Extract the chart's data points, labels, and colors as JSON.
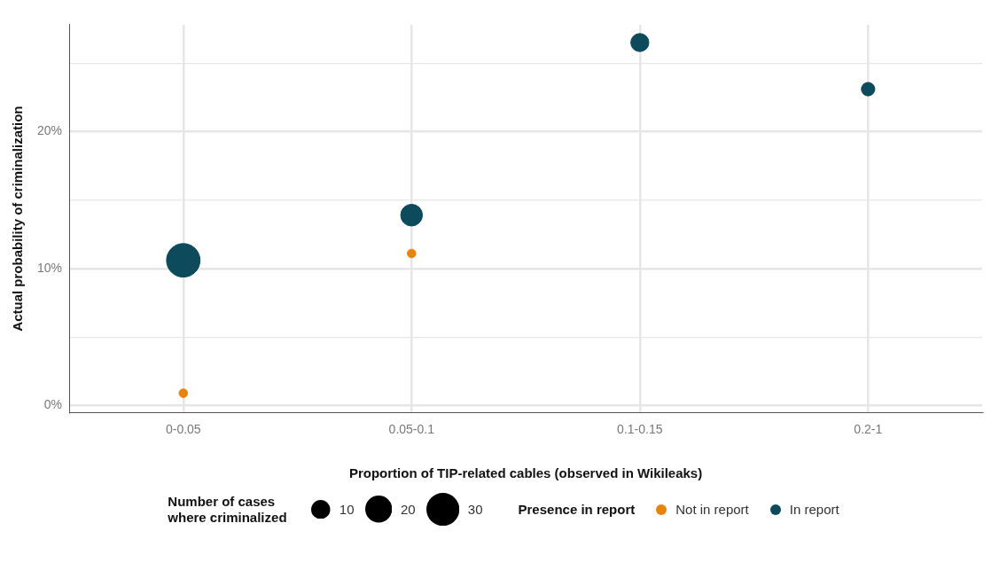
{
  "chart_data": {
    "type": "bubble",
    "xlabel": "Proportion of TIP-related cables (observed in Wikileaks)",
    "ylabel": "Actual probability of criminalization",
    "categories": [
      "0-0.05",
      "0.05-0.1",
      "0.1-0.15",
      "0.2-1"
    ],
    "series": [
      {
        "name": "Not in report",
        "color": "#e8830c",
        "values": [
          0.9,
          11.1,
          null,
          null
        ],
        "sizes": [
          2,
          2,
          null,
          null
        ]
      },
      {
        "name": "In report",
        "color": "#0d4a5c",
        "values": [
          10.6,
          13.9,
          26.5,
          23.1
        ],
        "sizes": [
          31,
          13,
          9,
          5
        ]
      }
    ],
    "size_legend": [
      10,
      20,
      30
    ],
    "legend_title": "Presence in report",
    "annotations": [
      "Number of cases where criminalized"
    ],
    "ylim": [
      -0.5,
      27.8
    ],
    "yticks": [
      {
        "value": 0,
        "label": "0%"
      },
      {
        "value": 5,
        "label": null
      },
      {
        "value": 10,
        "label": "10%"
      },
      {
        "value": 15,
        "label": null
      },
      {
        "value": 20,
        "label": "20%"
      },
      {
        "value": 25,
        "label": null
      }
    ],
    "grid": true,
    "legend": "bottom",
    "marker": "circle"
  }
}
